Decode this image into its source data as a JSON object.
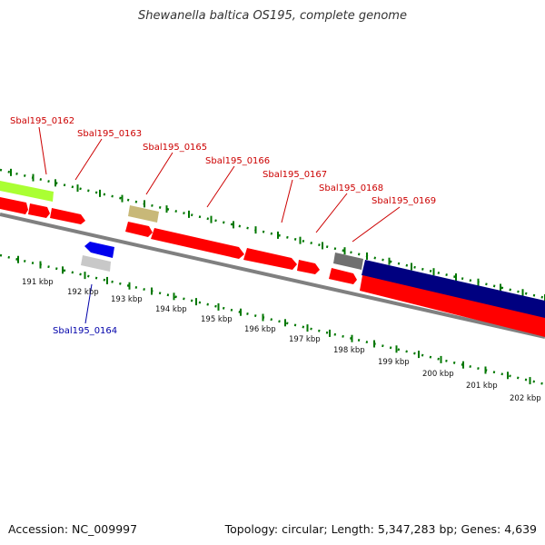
{
  "title": "Shewanella baltica OS195, complete genome",
  "footer": {
    "accession": "Accession: NC_009997",
    "summary": "Topology: circular; Length: 5,347,283 bp; Genes: 4,639"
  },
  "kbp_ticks": [
    "191 kbp",
    "192 kbp",
    "193 kbp",
    "194 kbp",
    "195 kbp",
    "196 kbp",
    "197 kbp",
    "198 kbp",
    "199 kbp",
    "200 kbp",
    "201 kbp",
    "202 kbp"
  ],
  "gene_labels": [
    {
      "name": "Sbal195_0162",
      "strand": "forward"
    },
    {
      "name": "Sbal195_0163",
      "strand": "forward"
    },
    {
      "name": "Sbal195_0165",
      "strand": "forward"
    },
    {
      "name": "Sbal195_0166",
      "strand": "forward"
    },
    {
      "name": "Sbal195_0167",
      "strand": "forward"
    },
    {
      "name": "Sbal195_0168",
      "strand": "forward"
    },
    {
      "name": "Sbal195_0169",
      "strand": "forward"
    },
    {
      "name": "Sbal195_0164",
      "strand": "reverse"
    }
  ],
  "colors": {
    "forward_label": "#cc0000",
    "reverse_label": "#0000aa",
    "cds_red": "#ff0000",
    "cds_blue": "#0000ee",
    "cds_navy": "#000080",
    "cds_lime": "#aaff33",
    "cds_khaki": "#c8b878",
    "cds_grey": "#707070",
    "cds_lightgrey": "#c8c8c8",
    "backbone": "#808080",
    "tick_green": "#007700"
  }
}
